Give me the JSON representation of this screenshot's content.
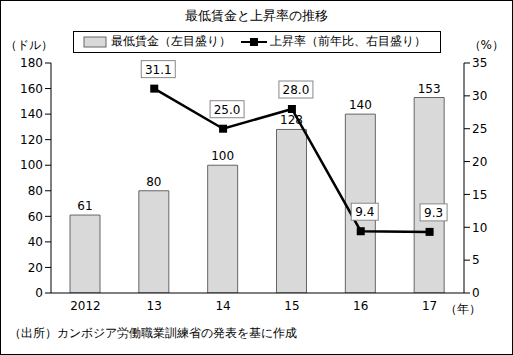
{
  "chart_data": {
    "type": "bar",
    "title": "最低賃金と上昇率の推移",
    "categories": [
      "2012",
      "13",
      "14",
      "15",
      "16",
      "17"
    ],
    "xlabel": "（年）",
    "ylabel": "（ドル）",
    "y2label": "（%）",
    "note": "（出所）カンボジア労働職業訓練省の発表を基に作成",
    "series": [
      {
        "name": "最低賃金（左目盛り）",
        "type": "bar",
        "color": "#d9d9d9",
        "values": [
          61,
          80,
          100,
          128,
          140,
          153
        ]
      },
      {
        "name": "上昇率（前年比、右目盛り）",
        "type": "line",
        "axis": "y2",
        "color": "#000000",
        "marker": "square",
        "values": [
          null,
          31.1,
          25,
          28,
          9.4,
          9.3
        ],
        "value_labels": [
          null,
          "31.1",
          "25.0",
          "28.0",
          "9.4",
          "9.3"
        ]
      }
    ],
    "ylim": [
      0,
      180
    ],
    "yticks": [
      0,
      20,
      40,
      60,
      80,
      100,
      120,
      140,
      160,
      180
    ],
    "y2lim": [
      0,
      35
    ],
    "y2ticks": [
      0,
      5,
      10,
      15,
      20,
      25,
      30,
      35
    ],
    "data_labels": true,
    "grid": false,
    "legend": "top"
  }
}
